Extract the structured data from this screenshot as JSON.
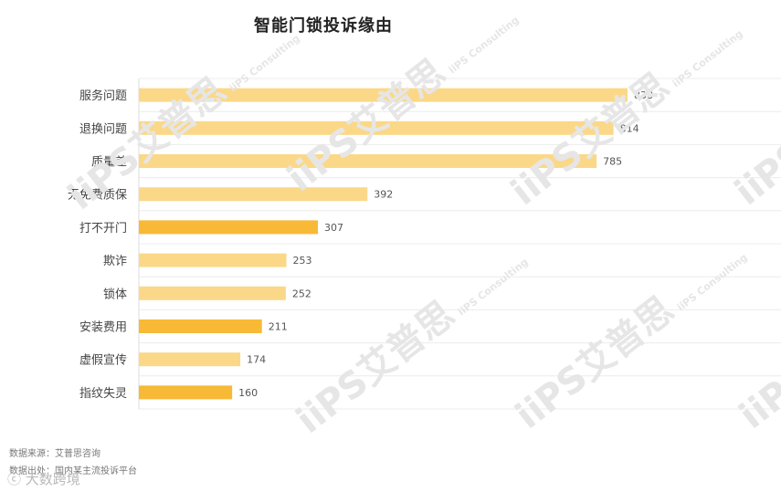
{
  "title": "智能门锁投诉缘由",
  "footnotes": {
    "source": "数据来源：艾普思咨询",
    "origin": "数据出处：国内某主流投诉平台"
  },
  "brand": "大数跨境",
  "watermark": {
    "main": "iiPS艾普思",
    "sub": "iiPS Consulting"
  },
  "colors": {
    "light_bar": "#FBD888",
    "dark_bar": "#F7B936",
    "grid": "#ececec",
    "axis": "#dddddd"
  },
  "chart_data": {
    "type": "bar",
    "orientation": "horizontal",
    "title": "智能门锁投诉缘由",
    "categories": [
      "服务问题",
      "退换问题",
      "质量差",
      "无免费质保",
      "打不开门",
      "欺诈",
      "锁体",
      "安装费用",
      "虚假宣传",
      "指纹失灵"
    ],
    "values": [
      838,
      814,
      785,
      392,
      307,
      253,
      252,
      211,
      174,
      160
    ],
    "highlighted": [
      false,
      false,
      false,
      false,
      true,
      false,
      false,
      true,
      false,
      true
    ],
    "xlim": [
      0,
      838
    ],
    "grid": true,
    "legend": "none"
  }
}
